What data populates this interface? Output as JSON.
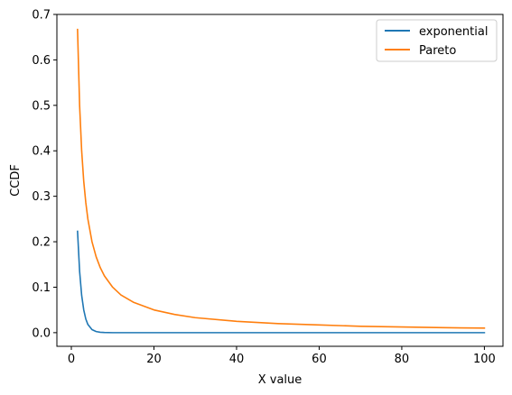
{
  "chart_data": {
    "type": "line",
    "title": "",
    "xlabel": "X value",
    "ylabel": "CCDF",
    "xlim": [
      -3.5,
      104.5
    ],
    "ylim": [
      -0.03,
      0.7
    ],
    "xticks": [
      0,
      20,
      40,
      60,
      80,
      100
    ],
    "xtick_labels": [
      "0",
      "20",
      "40",
      "60",
      "80",
      "100"
    ],
    "yticks": [
      0.0,
      0.1,
      0.2,
      0.3,
      0.4,
      0.5,
      0.6,
      0.7
    ],
    "ytick_labels": [
      "0.0",
      "0.1",
      "0.2",
      "0.3",
      "0.4",
      "0.5",
      "0.6",
      "0.7"
    ],
    "grid": false,
    "legend_position": "top-right",
    "series": [
      {
        "name": "exponential",
        "color": "#1f77b4",
        "x": [
          1.5,
          2,
          2.5,
          3,
          3.5,
          4,
          5,
          6,
          7,
          8,
          10,
          15,
          20,
          40,
          60,
          80,
          100
        ],
        "y": [
          0.223,
          0.135,
          0.082,
          0.05,
          0.03,
          0.018,
          0.0067,
          0.0025,
          0.0009,
          0.0003,
          0.0,
          0.0,
          0.0,
          0.0,
          0.0,
          0.0,
          0.0
        ]
      },
      {
        "name": "Pareto",
        "color": "#ff7f0e",
        "x": [
          1.5,
          2,
          2.5,
          3,
          3.5,
          4,
          5,
          6,
          7,
          8,
          10,
          12,
          15,
          20,
          25,
          30,
          40,
          50,
          60,
          70,
          80,
          90,
          100
        ],
        "y": [
          0.667,
          0.5,
          0.4,
          0.333,
          0.286,
          0.25,
          0.2,
          0.167,
          0.143,
          0.125,
          0.1,
          0.083,
          0.067,
          0.05,
          0.04,
          0.033,
          0.025,
          0.02,
          0.017,
          0.014,
          0.0125,
          0.011,
          0.01
        ]
      }
    ]
  }
}
